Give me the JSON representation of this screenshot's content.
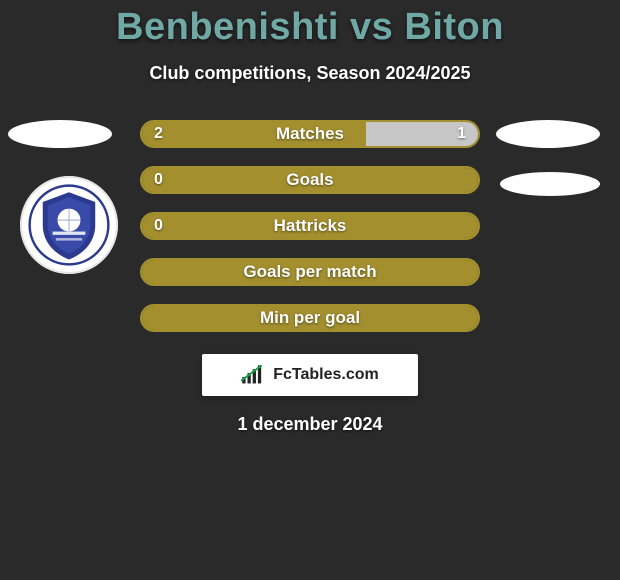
{
  "background_color": "#2a2a2a",
  "title": {
    "text": "Benbenishti vs Biton",
    "color": "#6fa8a4",
    "fontsize": 38
  },
  "subtitle": {
    "text": "Club competitions, Season 2024/2025",
    "color": "#ffffff",
    "fontsize": 18
  },
  "date": {
    "text": "1 december 2024",
    "color": "#ffffff",
    "fontsize": 18
  },
  "brand": {
    "text": "FcTables.com",
    "bg": "#ffffff",
    "text_color": "#222222"
  },
  "bars_common": {
    "border_color": "#a38f2e",
    "fill_color": "#a38f2e",
    "empty_fill_color": "#c7c7c7",
    "track_color": "transparent",
    "height": 28,
    "radius": 14,
    "label_color": "#ffffff",
    "label_fontsize": 17
  },
  "bars": [
    {
      "key": "matches",
      "label": "Matches",
      "left": "2",
      "right": "1",
      "left_pct": 66.7,
      "right_pct": 33.3,
      "right_colored": false
    },
    {
      "key": "goals",
      "label": "Goals",
      "left": "0",
      "right": "",
      "left_pct": 100,
      "right_pct": 0,
      "right_colored": false
    },
    {
      "key": "hattricks",
      "label": "Hattricks",
      "left": "0",
      "right": "",
      "left_pct": 100,
      "right_pct": 0,
      "right_colored": false
    },
    {
      "key": "gpm",
      "label": "Goals per match",
      "left": "",
      "right": "",
      "left_pct": 100,
      "right_pct": 0,
      "right_colored": false
    },
    {
      "key": "mpg",
      "label": "Min per goal",
      "left": "",
      "right": "",
      "left_pct": 100,
      "right_pct": 0,
      "right_colored": false
    }
  ],
  "side_shapes": {
    "ellipse_color": "#ffffff",
    "logo_bg": "#ffffff",
    "logo_ring": "#2b3a8f",
    "logo_inner": "#3a4aa8"
  }
}
